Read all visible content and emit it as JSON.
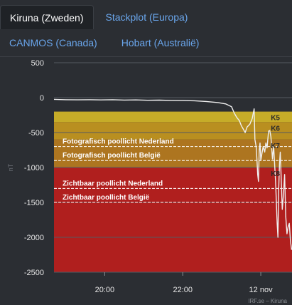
{
  "tabs": [
    {
      "label": "Kiruna (Zweden)",
      "active": true
    },
    {
      "label": "Stackplot (Europa)",
      "active": false
    },
    {
      "label": "CANMOS (Canada)",
      "active": false
    },
    {
      "label": "Hobart (Australië)",
      "active": false
    }
  ],
  "colors": {
    "background": "#2b2e33",
    "active_tab_bg": "#1f2226",
    "link": "#6aa6ec",
    "band_k5": "#c6ac28",
    "band_k6": "#b98f20",
    "band_k7": "#ad7520",
    "band_k8": "#b01f1e",
    "line": "#f0f0f0"
  },
  "chart_data": {
    "type": "line",
    "ylabel": "nT",
    "ylim": [
      -2500,
      500
    ],
    "y_ticks": [
      500,
      0,
      -500,
      -1000,
      -1500,
      -2000,
      -2500
    ],
    "x_ticks": [
      {
        "label": "20:00",
        "hour": 20
      },
      {
        "label": "22:00",
        "hour": 22
      },
      {
        "label": "12 nov",
        "hour": 24
      }
    ],
    "xlim_hours": [
      18.7,
      24.8
    ],
    "bands": [
      {
        "label": "K5",
        "from": -200,
        "to": -350,
        "color": "#c6ac28"
      },
      {
        "label": "K6",
        "from": -350,
        "to": -600,
        "color": "#b98f20"
      },
      {
        "label": "K7",
        "from": -600,
        "to": -1000,
        "color": "#ad7520"
      },
      {
        "label": "K8",
        "from": -1000,
        "to": -2500,
        "color": "#b01f1e"
      }
    ],
    "thresholds": [
      {
        "label": "Fotografisch poollicht Nederland",
        "value": -700
      },
      {
        "label": "Fotografisch poollicht België",
        "value": -900
      },
      {
        "label": "Zichtbaar poollicht Nederland",
        "value": -1300
      },
      {
        "label": "Zichtbaar poollicht België",
        "value": -1500
      }
    ],
    "series": [
      {
        "points": [
          [
            18.7,
            -25
          ],
          [
            19.0,
            -30
          ],
          [
            19.3,
            -32
          ],
          [
            19.6,
            -30
          ],
          [
            19.9,
            -33
          ],
          [
            20.2,
            -30
          ],
          [
            20.5,
            -35
          ],
          [
            20.8,
            -33
          ],
          [
            21.1,
            -38
          ],
          [
            21.4,
            -36
          ],
          [
            21.7,
            -40
          ],
          [
            22.0,
            -42
          ],
          [
            22.3,
            -45
          ],
          [
            22.6,
            -55
          ],
          [
            22.9,
            -70
          ],
          [
            23.1,
            -90
          ],
          [
            23.25,
            -130
          ],
          [
            23.32,
            -220
          ],
          [
            23.38,
            -280
          ],
          [
            23.45,
            -330
          ],
          [
            23.5,
            -400
          ],
          [
            23.55,
            -450
          ],
          [
            23.6,
            -500
          ],
          [
            23.65,
            -420
          ],
          [
            23.72,
            -380
          ],
          [
            23.78,
            -300
          ],
          [
            23.83,
            -160
          ],
          [
            23.85,
            -600
          ],
          [
            23.88,
            -700
          ],
          [
            23.9,
            -880
          ],
          [
            23.92,
            -1100
          ],
          [
            23.94,
            -1200
          ],
          [
            23.96,
            -750
          ],
          [
            23.98,
            -650
          ],
          [
            24.0,
            -900
          ],
          [
            24.03,
            -800
          ],
          [
            24.06,
            -700
          ],
          [
            24.1,
            -780
          ],
          [
            24.13,
            -650
          ],
          [
            24.16,
            -720
          ],
          [
            24.2,
            -480
          ],
          [
            24.23,
            -470
          ],
          [
            24.26,
            -560
          ],
          [
            24.3,
            -880
          ],
          [
            24.33,
            -700
          ],
          [
            24.36,
            -1000
          ],
          [
            24.38,
            -1200
          ],
          [
            24.4,
            -1500
          ],
          [
            24.42,
            -1800
          ],
          [
            24.44,
            -2000
          ],
          [
            24.46,
            -1300
          ],
          [
            24.48,
            -950
          ],
          [
            24.5,
            -780
          ],
          [
            24.52,
            -1100
          ],
          [
            24.55,
            -1600
          ],
          [
            24.58,
            -1400
          ],
          [
            24.61,
            -1100
          ],
          [
            24.64,
            -1700
          ],
          [
            24.67,
            -1950
          ],
          [
            24.7,
            -1850
          ],
          [
            24.73,
            -1800
          ],
          [
            24.76,
            -2050
          ],
          [
            24.79,
            -2180
          ]
        ]
      }
    ]
  },
  "footer": {
    "credit": "IRF.se – Kiruna"
  }
}
